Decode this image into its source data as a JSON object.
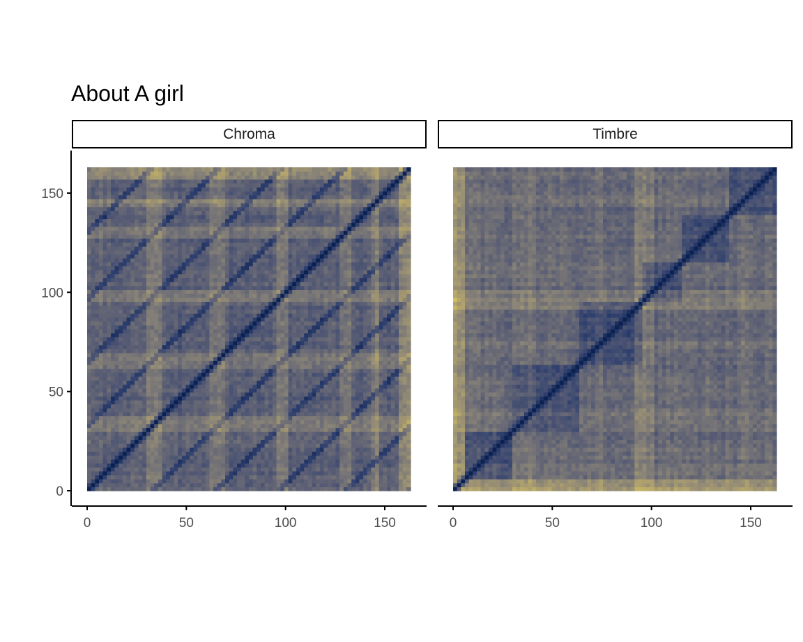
{
  "title": "About A girl",
  "chart_data": [
    {
      "type": "heatmap",
      "facet": "Chroma",
      "title": "About A girl",
      "xlim": [
        0,
        163
      ],
      "ylim": [
        0,
        163
      ],
      "xticks": [
        0,
        50,
        100,
        150
      ],
      "yticks": [
        0,
        50,
        100,
        150
      ],
      "xlabel": "",
      "ylabel": "",
      "n_segments": 163,
      "colormap": [
        "#0b2150",
        "#2e3f6e",
        "#5e6175",
        "#8b8577",
        "#b8a86b",
        "#f2e24e"
      ],
      "repeating_section_boundaries": [
        0,
        33,
        65,
        98,
        130,
        163
      ],
      "description_of_values": "self-similarity distance matrix, dark = similar, yellow = dissimilar"
    },
    {
      "type": "heatmap",
      "facet": "Timbre",
      "title": "About A girl",
      "xlim": [
        0,
        163
      ],
      "ylim": [
        0,
        163
      ],
      "xticks": [
        0,
        50,
        100,
        150
      ],
      "yticks": [],
      "xlabel": "",
      "ylabel": "",
      "n_segments": 163,
      "colormap": [
        "#0b2150",
        "#2e3f6e",
        "#5e6175",
        "#8b8577",
        "#b8a86b",
        "#f2e24e"
      ],
      "section_boundaries": [
        0,
        5,
        30,
        63,
        95,
        115,
        140,
        163
      ],
      "description_of_values": "self-similarity distance matrix, dark = similar, yellow = dissimilar"
    }
  ],
  "axis_labels": {
    "x_ticks": [
      "0",
      "50",
      "100",
      "150"
    ],
    "y_ticks": [
      "0",
      "50",
      "100",
      "150"
    ]
  }
}
